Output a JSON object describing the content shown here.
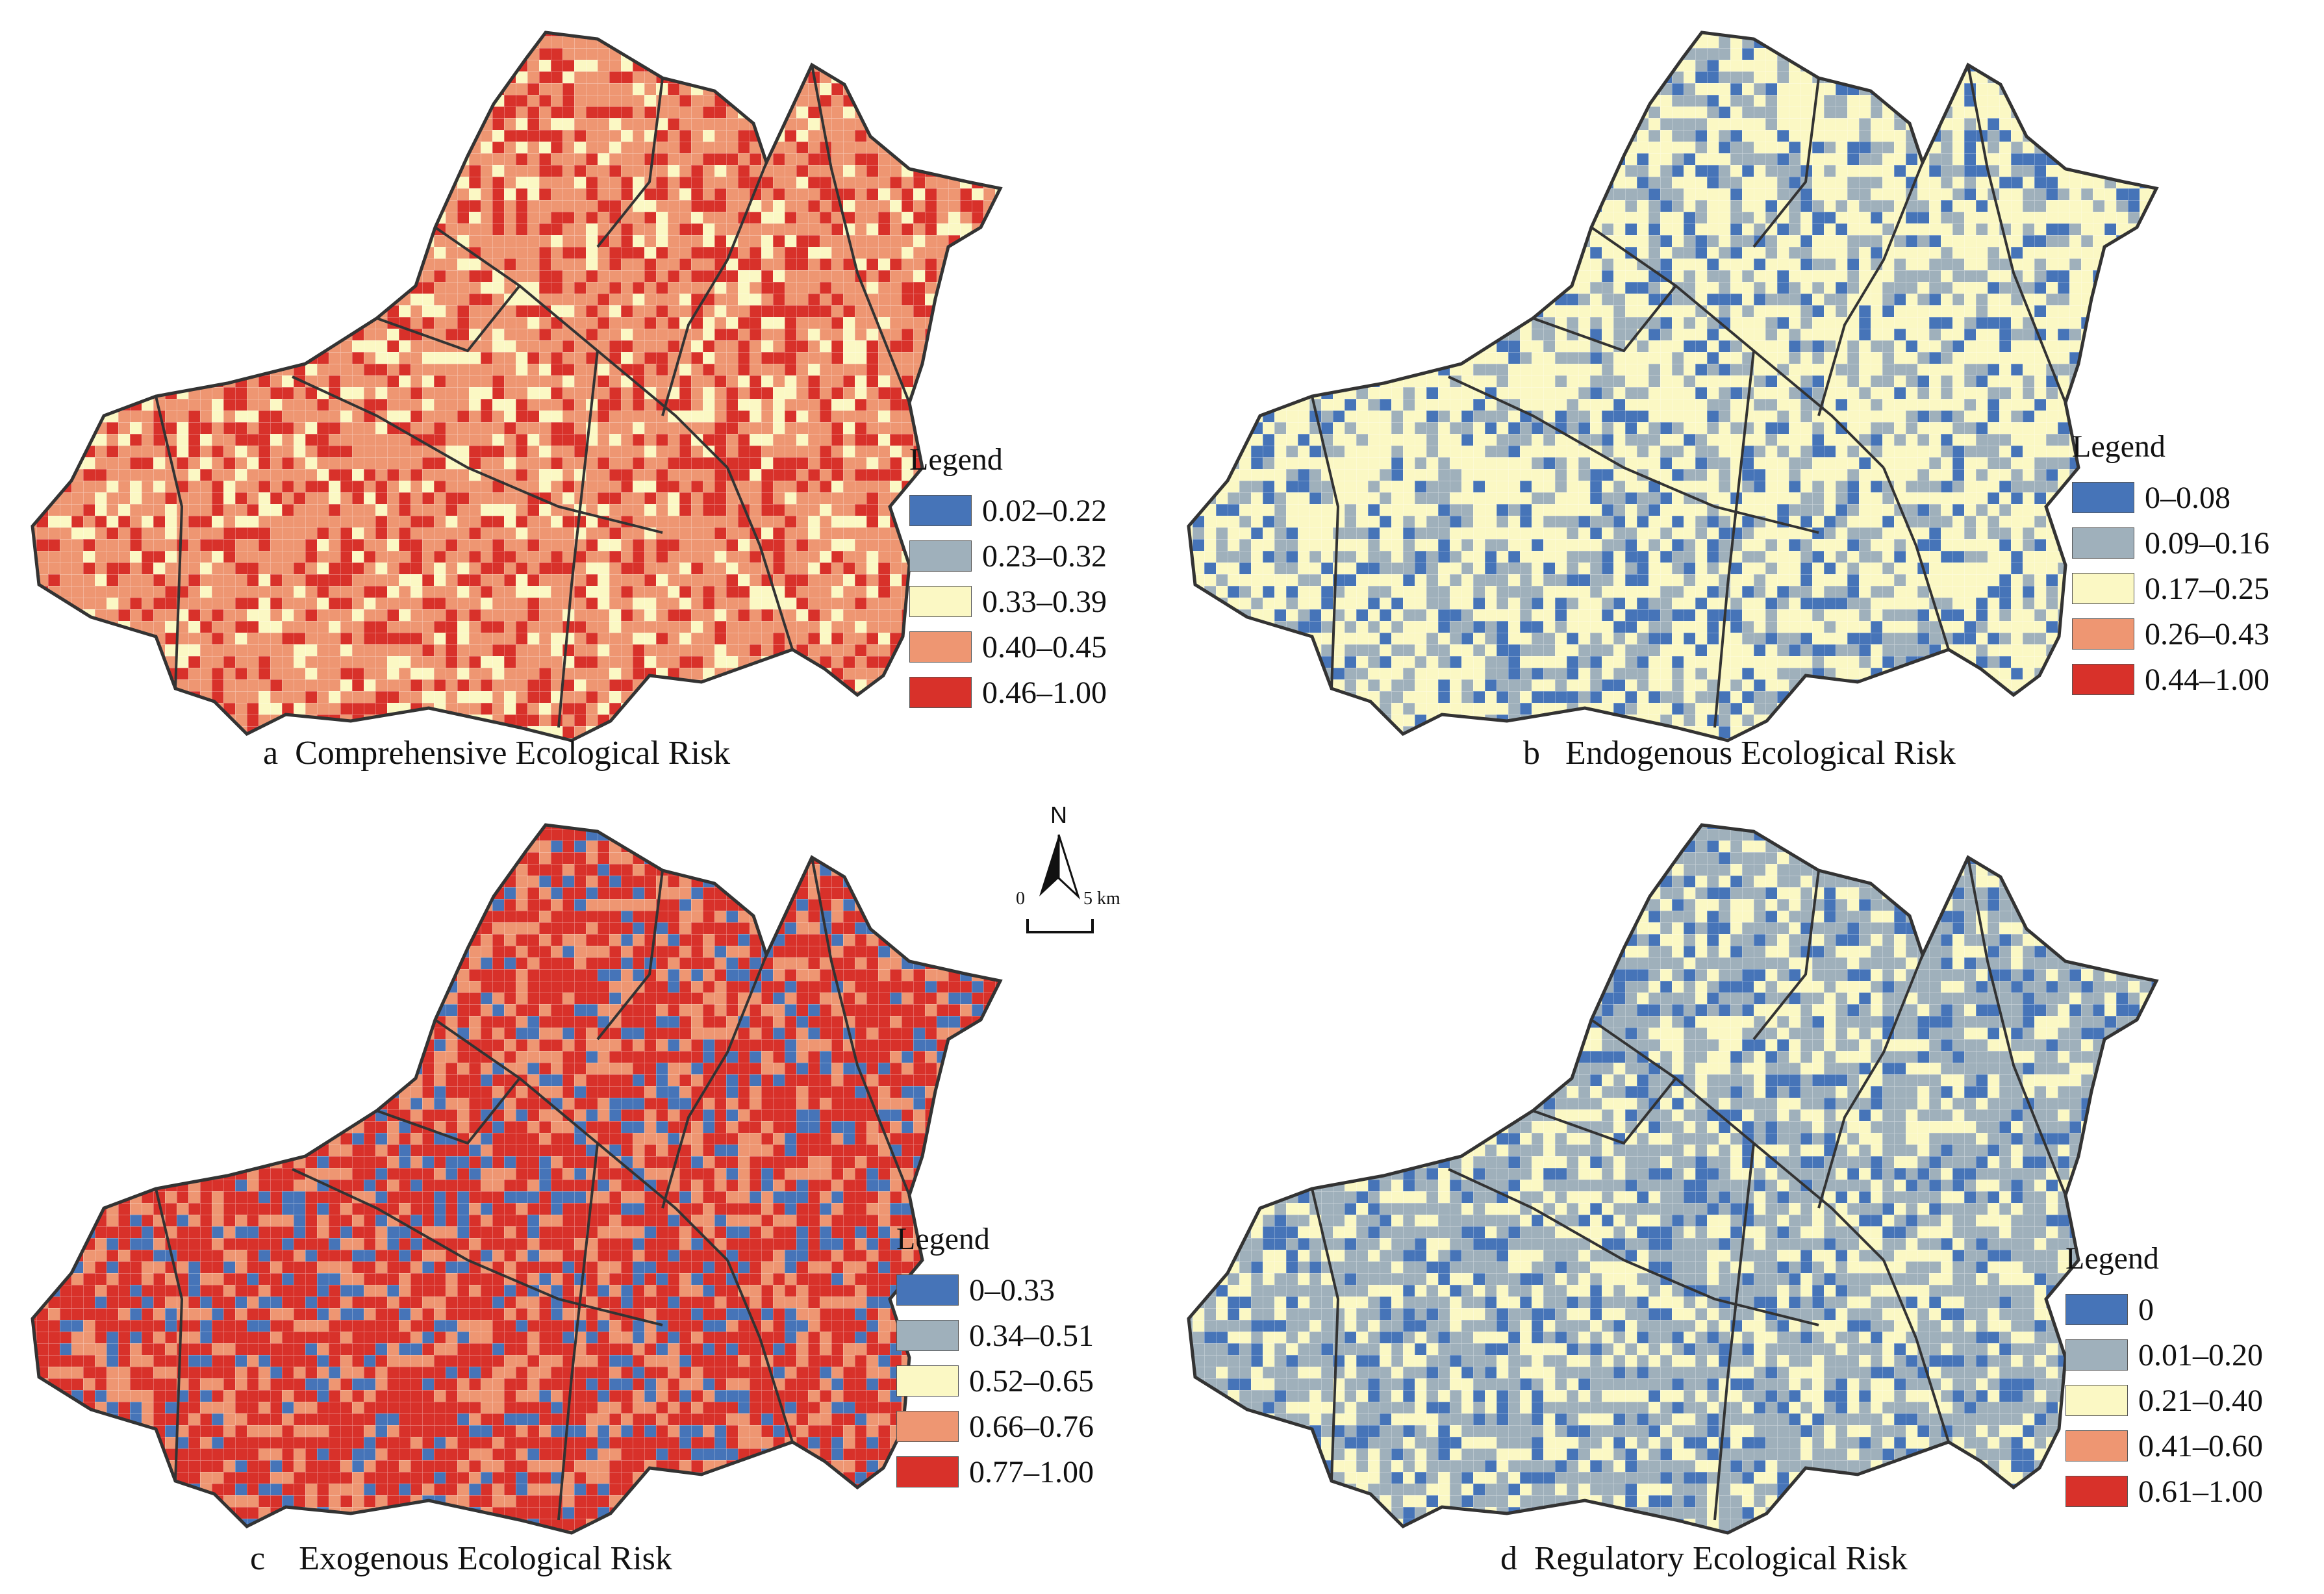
{
  "palette": {
    "blue": "#4674b8",
    "grey": "#9fb0bb",
    "cream": "#fbf8c4",
    "salmon": "#ee9672",
    "red": "#d8312a",
    "boundary": "#333333"
  },
  "panels": [
    {
      "id": "a",
      "caption_letter": "a",
      "caption_title": "Comprehensive Ecological Risk",
      "legend_title": "Legend",
      "classes": [
        "0.02–0.22",
        "0.23–0.32",
        "0.33–0.39",
        "0.40–0.45",
        "0.46–1.00"
      ],
      "dominant_classes": [
        "salmon",
        "red",
        "cream"
      ]
    },
    {
      "id": "b",
      "caption_letter": "b",
      "caption_title": "Endogenous Ecological Risk",
      "legend_title": "Legend",
      "classes": [
        "0–0.08",
        "0.09–0.16",
        "0.17–0.25",
        "0.26–0.43",
        "0.44–1.00"
      ],
      "dominant_classes": [
        "cream",
        "grey",
        "blue"
      ]
    },
    {
      "id": "c",
      "caption_letter": "c",
      "caption_title": "Exogenous Ecological Risk",
      "legend_title": "Legend",
      "classes": [
        "0–0.33",
        "0.34–0.51",
        "0.52–0.65",
        "0.66–0.76",
        "0.77–1.00"
      ],
      "dominant_classes": [
        "red",
        "salmon",
        "blue"
      ]
    },
    {
      "id": "d",
      "caption_letter": "d",
      "caption_title": "Regulatory Ecological Risk",
      "legend_title": "Legend",
      "classes": [
        "0",
        "0.01–0.20",
        "0.21–0.40",
        "0.41–0.60",
        "0.61–1.00"
      ],
      "dominant_classes": [
        "grey",
        "cream",
        "blue"
      ]
    }
  ],
  "north_arrow": {
    "letter": "N",
    "scale_start": "0",
    "scale_end": "5 km"
  }
}
